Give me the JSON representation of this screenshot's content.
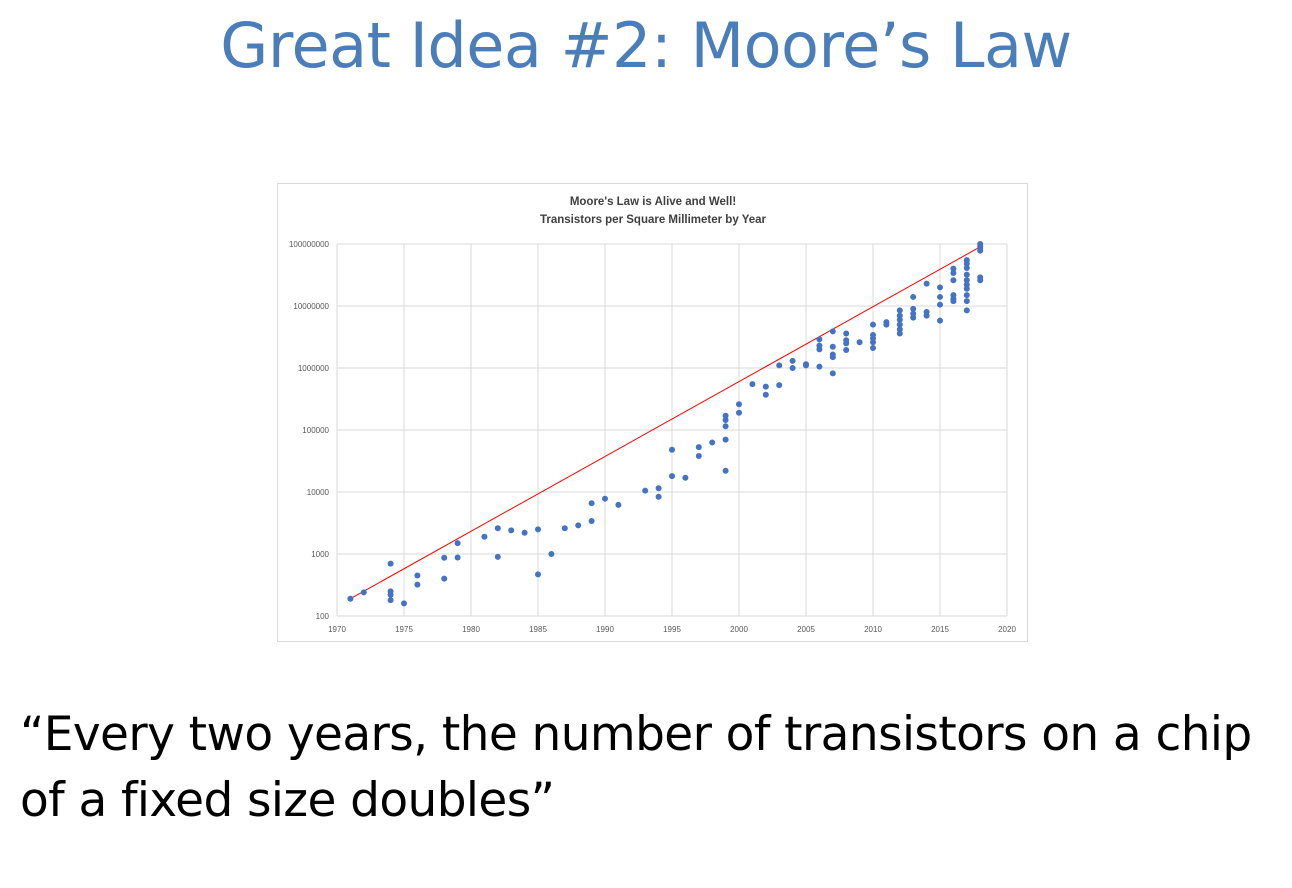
{
  "slide": {
    "title": "Great Idea #2: Moore’s Law",
    "quote": "“Every two years, the number of transistors on a chip of a fixed size doubles”"
  },
  "colors": {
    "title": "#4a7ebb",
    "points": "#4472c4",
    "trend_line": "#ff0000",
    "grid": "#d9d9d9"
  },
  "chart_data": {
    "type": "scatter",
    "title": "Moore's Law is Alive and Well!",
    "subtitle": "Transistors per Square Millimeter by Year",
    "xlabel": "",
    "ylabel": "",
    "xlim": [
      1970,
      2020
    ],
    "ylim": [
      100,
      100000000
    ],
    "yscale": "log",
    "grid": true,
    "legend": "none",
    "x_ticks": [
      "1970",
      "1975",
      "1980",
      "1985",
      "1990",
      "1995",
      "2000",
      "2005",
      "2010",
      "2015",
      "2020"
    ],
    "y_ticks": [
      "100",
      "1000",
      "10000",
      "100000",
      "1000000",
      "10000000",
      "100000000"
    ],
    "trend_line": {
      "x": [
        1971,
        2018
      ],
      "y": [
        190,
        90000000
      ]
    },
    "points": [
      [
        1971,
        190
      ],
      [
        1972,
        240
      ],
      [
        1974,
        700
      ],
      [
        1974,
        250
      ],
      [
        1974,
        220
      ],
      [
        1974,
        180
      ],
      [
        1975,
        160
      ],
      [
        1976,
        450
      ],
      [
        1976,
        320
      ],
      [
        1978,
        870
      ],
      [
        1978,
        400
      ],
      [
        1979,
        1500
      ],
      [
        1979,
        880
      ],
      [
        1981,
        1900
      ],
      [
        1982,
        2600
      ],
      [
        1982,
        900
      ],
      [
        1983,
        2400
      ],
      [
        1984,
        2200
      ],
      [
        1985,
        2500
      ],
      [
        1985,
        470
      ],
      [
        1986,
        1000
      ],
      [
        1987,
        2600
      ],
      [
        1988,
        2900
      ],
      [
        1989,
        6600
      ],
      [
        1989,
        3400
      ],
      [
        1990,
        7800
      ],
      [
        1991,
        6200
      ],
      [
        1993,
        10500
      ],
      [
        1994,
        11500
      ],
      [
        1994,
        8400
      ],
      [
        1995,
        48000
      ],
      [
        1995,
        18000
      ],
      [
        1996,
        17000
      ],
      [
        1997,
        53000
      ],
      [
        1997,
        38000
      ],
      [
        1998,
        63000
      ],
      [
        1999,
        170000
      ],
      [
        1999,
        145000
      ],
      [
        1999,
        115000
      ],
      [
        1999,
        70000
      ],
      [
        1999,
        22000
      ],
      [
        2000,
        260000
      ],
      [
        2000,
        190000
      ],
      [
        2001,
        550000
      ],
      [
        2002,
        500000
      ],
      [
        2002,
        370000
      ],
      [
        2003,
        1100000
      ],
      [
        2003,
        530000
      ],
      [
        2004,
        1300000
      ],
      [
        2004,
        1000000
      ],
      [
        2005,
        1150000
      ],
      [
        2005,
        1100000
      ],
      [
        2006,
        2900000
      ],
      [
        2006,
        2300000
      ],
      [
        2006,
        2000000
      ],
      [
        2006,
        1050000
      ],
      [
        2007,
        3900000
      ],
      [
        2007,
        2200000
      ],
      [
        2007,
        1650000
      ],
      [
        2007,
        1500000
      ],
      [
        2007,
        820000
      ],
      [
        2008,
        3600000
      ],
      [
        2008,
        2800000
      ],
      [
        2008,
        2500000
      ],
      [
        2008,
        1950000
      ],
      [
        2009,
        2600000
      ],
      [
        2010,
        5000000
      ],
      [
        2010,
        3400000
      ],
      [
        2010,
        3000000
      ],
      [
        2010,
        2600000
      ],
      [
        2010,
        2100000
      ],
      [
        2011,
        5500000
      ],
      [
        2011,
        5000000
      ],
      [
        2012,
        8500000
      ],
      [
        2012,
        7000000
      ],
      [
        2012,
        6000000
      ],
      [
        2012,
        5000000
      ],
      [
        2012,
        4200000
      ],
      [
        2012,
        3600000
      ],
      [
        2013,
        14000000
      ],
      [
        2013,
        9000000
      ],
      [
        2013,
        7500000
      ],
      [
        2013,
        6500000
      ],
      [
        2014,
        23000000
      ],
      [
        2014,
        8000000
      ],
      [
        2014,
        7000000
      ],
      [
        2015,
        20000000
      ],
      [
        2015,
        14000000
      ],
      [
        2015,
        10500000
      ],
      [
        2015,
        5800000
      ],
      [
        2016,
        40000000
      ],
      [
        2016,
        34000000
      ],
      [
        2016,
        26000000
      ],
      [
        2016,
        15000000
      ],
      [
        2016,
        13000000
      ],
      [
        2016,
        12000000
      ],
      [
        2017,
        55000000
      ],
      [
        2017,
        48000000
      ],
      [
        2017,
        41000000
      ],
      [
        2017,
        32000000
      ],
      [
        2017,
        26000000
      ],
      [
        2017,
        22000000
      ],
      [
        2017,
        19000000
      ],
      [
        2017,
        15000000
      ],
      [
        2017,
        12000000
      ],
      [
        2017,
        8500000
      ],
      [
        2018,
        100000000
      ],
      [
        2018,
        92000000
      ],
      [
        2018,
        85000000
      ],
      [
        2018,
        78000000
      ],
      [
        2018,
        29000000
      ],
      [
        2018,
        26000000
      ]
    ]
  }
}
